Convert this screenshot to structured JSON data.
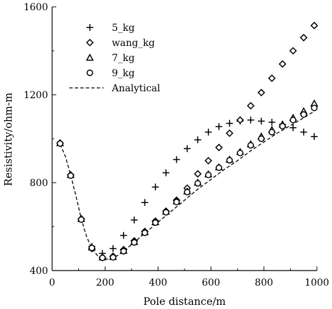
{
  "chart_data": {
    "type": "scatter",
    "xlabel": "Pole distance/m",
    "ylabel": "Resistivity/ohm-m",
    "xlim": [
      0,
      1000
    ],
    "ylim": [
      400,
      1600
    ],
    "xticks": [
      0,
      200,
      400,
      600,
      800,
      1000
    ],
    "yticks": [
      400,
      800,
      1200,
      1600
    ],
    "grid": false,
    "legend_position": "top-left",
    "series": [
      {
        "name": "5_kg",
        "marker": "plus",
        "x": [
          30,
          70,
          110,
          150,
          190,
          230,
          270,
          310,
          350,
          390,
          430,
          470,
          510,
          550,
          590,
          630,
          670,
          710,
          750,
          790,
          830,
          870,
          910,
          950,
          990
        ],
        "y": [
          980,
          835,
          635,
          510,
          478,
          500,
          560,
          630,
          710,
          780,
          845,
          905,
          955,
          995,
          1030,
          1055,
          1070,
          1080,
          1085,
          1080,
          1075,
          1065,
          1050,
          1030,
          1010
        ]
      },
      {
        "name": "wang_kg",
        "marker": "diamond",
        "x": [
          30,
          70,
          110,
          150,
          190,
          230,
          270,
          310,
          350,
          390,
          430,
          470,
          510,
          550,
          590,
          630,
          670,
          710,
          750,
          790,
          830,
          870,
          910,
          950,
          990
        ],
        "y": [
          980,
          835,
          635,
          500,
          460,
          465,
          495,
          535,
          578,
          625,
          670,
          720,
          775,
          840,
          900,
          960,
          1025,
          1085,
          1150,
          1210,
          1275,
          1340,
          1400,
          1460,
          1515
        ]
      },
      {
        "name": "7_kg",
        "marker": "triangle",
        "x": [
          30,
          70,
          110,
          150,
          190,
          230,
          270,
          310,
          350,
          390,
          430,
          470,
          510,
          550,
          590,
          630,
          670,
          710,
          750,
          790,
          830,
          870,
          910,
          950,
          990
        ],
        "y": [
          980,
          835,
          635,
          505,
          460,
          462,
          490,
          530,
          575,
          620,
          668,
          715,
          760,
          800,
          838,
          870,
          905,
          940,
          975,
          1010,
          1040,
          1065,
          1095,
          1125,
          1160
        ]
      },
      {
        "name": "9_kg",
        "marker": "circle",
        "x": [
          30,
          70,
          110,
          150,
          190,
          230,
          270,
          310,
          350,
          390,
          430,
          470,
          510,
          550,
          590,
          630,
          670,
          710,
          750,
          790,
          830,
          870,
          910,
          950,
          990
        ],
        "y": [
          978,
          832,
          632,
          503,
          458,
          460,
          488,
          528,
          572,
          618,
          665,
          712,
          757,
          797,
          835,
          868,
          902,
          935,
          970,
          1000,
          1030,
          1057,
          1085,
          1110,
          1140
        ]
      },
      {
        "name": "Analytical",
        "marker": "dashed-line",
        "x": [
          30,
          50,
          70,
          90,
          110,
          130,
          150,
          170,
          190,
          210,
          230,
          250,
          270,
          300,
          350,
          400,
          450,
          500,
          550,
          600,
          650,
          700,
          750,
          800,
          850,
          900,
          950,
          990
        ],
        "y": [
          975,
          920,
          835,
          740,
          635,
          555,
          500,
          470,
          455,
          452,
          458,
          470,
          488,
          518,
          570,
          620,
          670,
          720,
          770,
          815,
          860,
          900,
          945,
          985,
          1025,
          1060,
          1095,
          1125
        ]
      }
    ]
  }
}
